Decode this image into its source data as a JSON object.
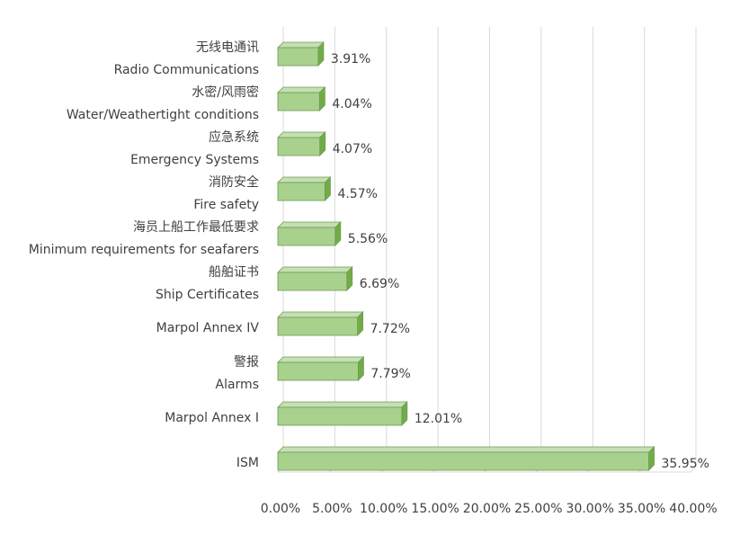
{
  "chart_data": {
    "type": "bar",
    "orientation": "horizontal",
    "style": "3d",
    "categories": [
      [
        "无线电通讯",
        "Radio Communications"
      ],
      [
        "水密/风雨密",
        "Water/Weathertight conditions"
      ],
      [
        "应急系统",
        "Emergency Systems"
      ],
      [
        "消防安全",
        "Fire safety"
      ],
      [
        "海员上船工作最低要求",
        "Minimum requirements for seafarers"
      ],
      [
        "船舶证书",
        "Ship Certificates"
      ],
      [
        "Marpol Annex IV"
      ],
      [
        "警报",
        "Alarms"
      ],
      [
        "Marpol Annex I"
      ],
      [
        "ISM"
      ]
    ],
    "values": [
      3.91,
      4.04,
      4.07,
      4.57,
      5.56,
      6.69,
      7.72,
      7.79,
      12.01,
      35.95
    ],
    "data_labels": [
      "3.91%",
      "4.04%",
      "4.07%",
      "4.57%",
      "5.56%",
      "6.69%",
      "7.72%",
      "7.79%",
      "12.01%",
      "35.95%"
    ],
    "x_ticks": [
      "0.00%",
      "5.00%",
      "10.00%",
      "15.00%",
      "20.00%",
      "25.00%",
      "30.00%",
      "35.00%",
      "40.00%"
    ],
    "xlim": [
      0,
      40
    ],
    "grid": true,
    "legend": "none",
    "colors": {
      "bar_front": "#a9d18e",
      "bar_top": "#c5e0b4",
      "bar_side": "#70ad47",
      "bar_edge": "#6e9a50",
      "grid": "#d9d9d9",
      "text": "#404040"
    }
  }
}
